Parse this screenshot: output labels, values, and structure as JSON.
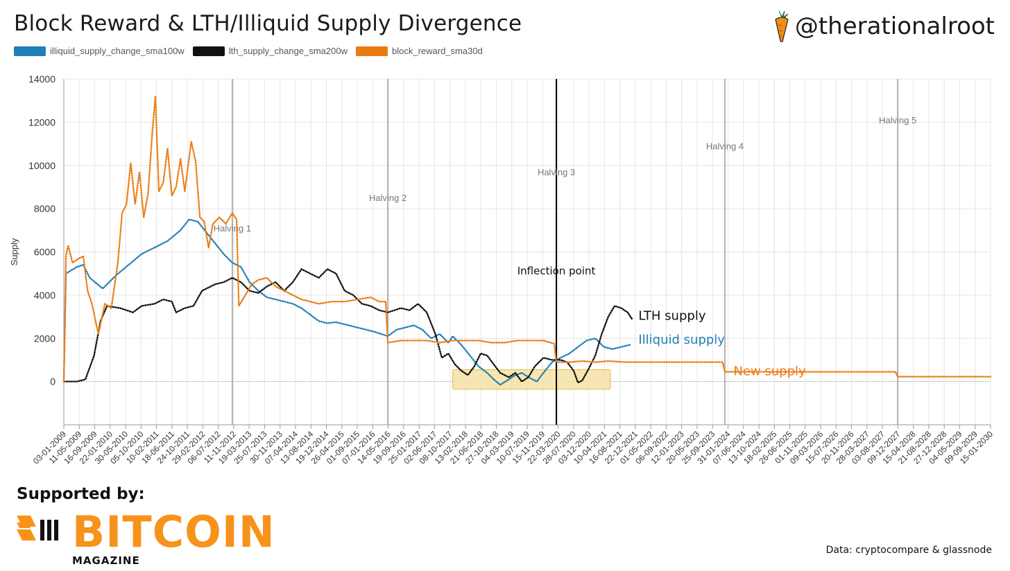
{
  "header": {
    "title": "Block Reward & LTH/Illiquid Supply Divergence",
    "handle": "@therationalroot"
  },
  "footer": {
    "supported_by": "Supported by:",
    "logo_word": "BITCOIN",
    "logo_sub": "MAGAZINE",
    "source": "Data: cryptocompare & glassnode"
  },
  "colors": {
    "illiquid": "#1f7fb8",
    "lth": "#111111",
    "block_reward": "#ec7a12",
    "highlight_fill": "#f6e2a6",
    "highlight_stroke": "#e6c25a",
    "logo": "#F7931A"
  },
  "icons": [
    "carrot-icon",
    "bitcoin-magazine-logo-icon"
  ],
  "chart_data": {
    "type": "line",
    "xlabel": "",
    "ylabel": "Supply",
    "ylim": [
      -2000,
      14000
    ],
    "yticks": [
      0,
      2000,
      4000,
      6000,
      8000,
      10000,
      12000,
      14000
    ],
    "grid": true,
    "legend_position": "top-left",
    "x_ticks": [
      "03-01-2009",
      "11-05-2009",
      "16-09-2009",
      "22-01-2010",
      "30-05-2010",
      "05-10-2010",
      "10-02-2011",
      "18-06-2011",
      "24-10-2011",
      "29-02-2012",
      "06-07-2012",
      "11-11-2012",
      "19-03-2013",
      "25-07-2013",
      "30-11-2013",
      "07-04-2014",
      "13-08-2014",
      "19-12-2014",
      "26-04-2015",
      "01-09-2015",
      "07-01-2016",
      "14-05-2016",
      "19-09-2016",
      "25-01-2017",
      "02-06-2017",
      "08-10-2017",
      "13-02-2018",
      "21-06-2018",
      "27-10-2018",
      "04-03-2019",
      "10-07-2019",
      "15-11-2019",
      "22-03-2020",
      "28-07-2020",
      "03-12-2020",
      "10-04-2021",
      "16-08-2021",
      "22-12-2021",
      "01-05-2022",
      "06-09-2022",
      "12-01-2023",
      "20-05-2023",
      "25-09-2023",
      "31-01-2024",
      "07-06-2024",
      "13-10-2024",
      "18-02-2025",
      "26-06-2025",
      "01-11-2025",
      "09-03-2026",
      "15-07-2026",
      "20-11-2026",
      "28-03-2027",
      "03-08-2027",
      "09-12-2027",
      "15-04-2028",
      "21-08-2028",
      "27-12-2028",
      "04-05-2029",
      "09-09-2029",
      "15-01-2030"
    ],
    "vertical_lines": [
      {
        "label": "Halving 1",
        "x": 2012.9,
        "style": "gray"
      },
      {
        "label": "Halving 2",
        "x": 2016.5,
        "style": "gray"
      },
      {
        "label": "Halving 3",
        "x": 2020.4,
        "style": "black"
      },
      {
        "label": "Halving 4",
        "x": 2024.3,
        "style": "gray"
      },
      {
        "label": "Halving 5",
        "x": 2028.3,
        "style": "gray"
      }
    ],
    "annotations": [
      {
        "text": "Inflection point",
        "x": 2020.4,
        "y": 4950
      },
      {
        "text": "LTH supply",
        "series": "lth_supply_change_sma200w"
      },
      {
        "text": "Illiquid supply",
        "series": "illiquid_supply_change_sma100w"
      },
      {
        "text": "New supply",
        "series": "block_reward_sma30d"
      }
    ],
    "highlight_box": {
      "x0": 2018.0,
      "x1": 2021.65,
      "y0": -350,
      "y1": 550
    },
    "series": [
      {
        "name": "illiquid_supply_change_sma100w",
        "color": "#1f7fb8",
        "points": [
          [
            2009.0,
            0
          ],
          [
            2009.05,
            5000
          ],
          [
            2009.3,
            5300
          ],
          [
            2009.45,
            5400
          ],
          [
            2009.6,
            4800
          ],
          [
            2009.9,
            4300
          ],
          [
            2010.2,
            4900
          ],
          [
            2010.5,
            5400
          ],
          [
            2010.8,
            5900
          ],
          [
            2011.1,
            6200
          ],
          [
            2011.4,
            6500
          ],
          [
            2011.7,
            7000
          ],
          [
            2011.9,
            7500
          ],
          [
            2012.1,
            7400
          ],
          [
            2012.3,
            6900
          ],
          [
            2012.5,
            6400
          ],
          [
            2012.7,
            5900
          ],
          [
            2012.9,
            5500
          ],
          [
            2013.1,
            5300
          ],
          [
            2013.3,
            4600
          ],
          [
            2013.5,
            4200
          ],
          [
            2013.7,
            3900
          ],
          [
            2013.9,
            3800
          ],
          [
            2014.1,
            3700
          ],
          [
            2014.3,
            3600
          ],
          [
            2014.5,
            3400
          ],
          [
            2014.7,
            3100
          ],
          [
            2014.9,
            2800
          ],
          [
            2015.1,
            2700
          ],
          [
            2015.3,
            2750
          ],
          [
            2015.5,
            2650
          ],
          [
            2015.8,
            2500
          ],
          [
            2016.0,
            2400
          ],
          [
            2016.2,
            2300
          ],
          [
            2016.5,
            2100
          ],
          [
            2016.7,
            2400
          ],
          [
            2016.9,
            2500
          ],
          [
            2017.1,
            2600
          ],
          [
            2017.3,
            2400
          ],
          [
            2017.5,
            2000
          ],
          [
            2017.7,
            2200
          ],
          [
            2017.9,
            1800
          ],
          [
            2018.0,
            2100
          ],
          [
            2018.2,
            1700
          ],
          [
            2018.4,
            1200
          ],
          [
            2018.6,
            700
          ],
          [
            2018.8,
            400
          ],
          [
            2018.95,
            100
          ],
          [
            2019.1,
            -150
          ],
          [
            2019.3,
            100
          ],
          [
            2019.45,
            300
          ],
          [
            2019.6,
            400
          ],
          [
            2019.8,
            150
          ],
          [
            2019.95,
            0
          ],
          [
            2020.1,
            400
          ],
          [
            2020.3,
            900
          ],
          [
            2020.5,
            1100
          ],
          [
            2020.7,
            1300
          ],
          [
            2020.9,
            1600
          ],
          [
            2021.1,
            1900
          ],
          [
            2021.3,
            2000
          ],
          [
            2021.5,
            1600
          ],
          [
            2021.7,
            1500
          ],
          [
            2021.9,
            1600
          ],
          [
            2022.1,
            1700
          ]
        ]
      },
      {
        "name": "lth_supply_change_sma200w",
        "color": "#111111",
        "points": [
          [
            2009.0,
            0
          ],
          [
            2009.3,
            0
          ],
          [
            2009.5,
            100
          ],
          [
            2009.7,
            1200
          ],
          [
            2009.85,
            2800
          ],
          [
            2010.0,
            3500
          ],
          [
            2010.3,
            3400
          ],
          [
            2010.6,
            3200
          ],
          [
            2010.8,
            3500
          ],
          [
            2011.1,
            3600
          ],
          [
            2011.3,
            3800
          ],
          [
            2011.5,
            3700
          ],
          [
            2011.6,
            3200
          ],
          [
            2011.8,
            3400
          ],
          [
            2012.0,
            3500
          ],
          [
            2012.2,
            4200
          ],
          [
            2012.5,
            4500
          ],
          [
            2012.7,
            4600
          ],
          [
            2012.9,
            4800
          ],
          [
            2013.1,
            4600
          ],
          [
            2013.3,
            4200
          ],
          [
            2013.5,
            4100
          ],
          [
            2013.7,
            4400
          ],
          [
            2013.9,
            4600
          ],
          [
            2014.1,
            4200
          ],
          [
            2014.3,
            4600
          ],
          [
            2014.5,
            5200
          ],
          [
            2014.7,
            5000
          ],
          [
            2014.9,
            4800
          ],
          [
            2015.1,
            5200
          ],
          [
            2015.3,
            5000
          ],
          [
            2015.5,
            4200
          ],
          [
            2015.7,
            4000
          ],
          [
            2015.9,
            3600
          ],
          [
            2016.1,
            3500
          ],
          [
            2016.3,
            3300
          ],
          [
            2016.5,
            3200
          ],
          [
            2016.8,
            3400
          ],
          [
            2017.0,
            3300
          ],
          [
            2017.2,
            3600
          ],
          [
            2017.4,
            3200
          ],
          [
            2017.6,
            2200
          ],
          [
            2017.75,
            1100
          ],
          [
            2017.9,
            1300
          ],
          [
            2018.05,
            800
          ],
          [
            2018.2,
            500
          ],
          [
            2018.35,
            300
          ],
          [
            2018.5,
            700
          ],
          [
            2018.65,
            1300
          ],
          [
            2018.8,
            1200
          ],
          [
            2018.95,
            800
          ],
          [
            2019.1,
            400
          ],
          [
            2019.3,
            200
          ],
          [
            2019.45,
            400
          ],
          [
            2019.6,
            0
          ],
          [
            2019.75,
            200
          ],
          [
            2019.9,
            700
          ],
          [
            2020.1,
            1100
          ],
          [
            2020.3,
            1000
          ],
          [
            2020.5,
            1000
          ],
          [
            2020.65,
            900
          ],
          [
            2020.8,
            500
          ],
          [
            2020.9,
            -50
          ],
          [
            2021.0,
            50
          ],
          [
            2021.15,
            600
          ],
          [
            2021.3,
            1200
          ],
          [
            2021.45,
            2200
          ],
          [
            2021.6,
            3000
          ],
          [
            2021.75,
            3500
          ],
          [
            2021.9,
            3400
          ],
          [
            2022.05,
            3200
          ],
          [
            2022.15,
            2900
          ]
        ]
      },
      {
        "name": "block_reward_sma30d",
        "color": "#ec7a12",
        "points": [
          [
            2009.0,
            0
          ],
          [
            2009.05,
            5800
          ],
          [
            2009.1,
            6300
          ],
          [
            2009.2,
            5500
          ],
          [
            2009.35,
            5700
          ],
          [
            2009.45,
            5800
          ],
          [
            2009.55,
            4200
          ],
          [
            2009.65,
            3600
          ],
          [
            2009.8,
            2200
          ],
          [
            2009.95,
            3600
          ],
          [
            2010.1,
            3400
          ],
          [
            2010.25,
            5500
          ],
          [
            2010.35,
            7800
          ],
          [
            2010.45,
            8200
          ],
          [
            2010.55,
            10100
          ],
          [
            2010.65,
            8200
          ],
          [
            2010.75,
            9700
          ],
          [
            2010.85,
            7600
          ],
          [
            2010.95,
            8700
          ],
          [
            2011.05,
            11600
          ],
          [
            2011.12,
            13200
          ],
          [
            2011.2,
            8800
          ],
          [
            2011.3,
            9200
          ],
          [
            2011.4,
            10800
          ],
          [
            2011.5,
            8600
          ],
          [
            2011.6,
            9000
          ],
          [
            2011.7,
            10300
          ],
          [
            2011.8,
            8800
          ],
          [
            2011.95,
            11100
          ],
          [
            2012.05,
            10200
          ],
          [
            2012.15,
            7600
          ],
          [
            2012.25,
            7400
          ],
          [
            2012.35,
            6200
          ],
          [
            2012.45,
            7300
          ],
          [
            2012.6,
            7600
          ],
          [
            2012.75,
            7300
          ],
          [
            2012.9,
            7800
          ],
          [
            2013.0,
            7500
          ],
          [
            2013.05,
            3500
          ],
          [
            2013.2,
            4000
          ],
          [
            2013.35,
            4500
          ],
          [
            2013.5,
            4700
          ],
          [
            2013.7,
            4800
          ],
          [
            2013.9,
            4400
          ],
          [
            2014.1,
            4200
          ],
          [
            2014.3,
            4000
          ],
          [
            2014.5,
            3800
          ],
          [
            2014.7,
            3700
          ],
          [
            2014.9,
            3600
          ],
          [
            2015.2,
            3700
          ],
          [
            2015.5,
            3700
          ],
          [
            2015.8,
            3800
          ],
          [
            2016.1,
            3900
          ],
          [
            2016.3,
            3700
          ],
          [
            2016.45,
            3700
          ],
          [
            2016.5,
            1800
          ],
          [
            2016.8,
            1900
          ],
          [
            2017.1,
            1900
          ],
          [
            2017.4,
            1900
          ],
          [
            2017.7,
            1800
          ],
          [
            2018.0,
            1900
          ],
          [
            2018.3,
            1900
          ],
          [
            2018.6,
            1900
          ],
          [
            2018.9,
            1800
          ],
          [
            2019.2,
            1800
          ],
          [
            2019.5,
            1900
          ],
          [
            2019.8,
            1900
          ],
          [
            2020.1,
            1900
          ],
          [
            2020.35,
            1750
          ],
          [
            2020.4,
            900
          ],
          [
            2020.7,
            900
          ],
          [
            2021.0,
            950
          ],
          [
            2021.3,
            900
          ],
          [
            2021.6,
            950
          ],
          [
            2022.0,
            900
          ],
          [
            2023.0,
            900
          ],
          [
            2024.0,
            900
          ],
          [
            2024.25,
            900
          ],
          [
            2024.3,
            450
          ],
          [
            2025.0,
            450
          ],
          [
            2026.0,
            450
          ],
          [
            2027.0,
            450
          ],
          [
            2028.0,
            450
          ],
          [
            2028.25,
            450
          ],
          [
            2028.3,
            225
          ],
          [
            2029.0,
            225
          ],
          [
            2030.0,
            225
          ],
          [
            2030.45,
            225
          ]
        ]
      }
    ]
  }
}
